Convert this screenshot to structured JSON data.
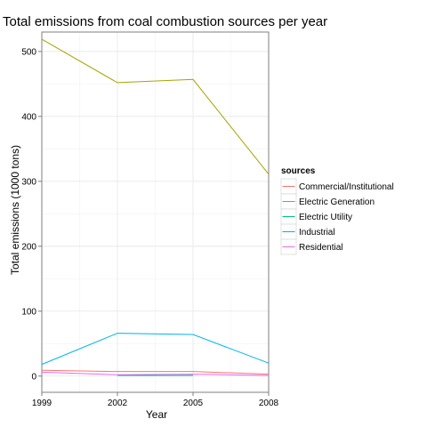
{
  "chart_data": {
    "type": "line",
    "title": "Total emissions from coal combustion sources per year",
    "xlabel": "Year",
    "ylabel": "Total emissions (1000 tons)",
    "x": [
      1999,
      2002,
      2005,
      2008
    ],
    "xlim": [
      1999,
      2008
    ],
    "ylim": [
      -25,
      530
    ],
    "x_ticks": [
      1999,
      2002,
      2005,
      2008
    ],
    "y_ticks": [
      0,
      100,
      200,
      300,
      400,
      500
    ],
    "grid": true,
    "legend": {
      "title": "sources",
      "placement": "right"
    },
    "series": [
      {
        "name": "Commercial/Institutional",
        "color": "#F8766D",
        "values": [
          9,
          7,
          7,
          3
        ]
      },
      {
        "name": "Electric Generation",
        "color": "#A3A500",
        "values": [
          519,
          452,
          457,
          311
        ]
      },
      {
        "name": "Electric Utility",
        "color": "#00BF7D",
        "values": [
          null,
          1,
          1,
          null
        ]
      },
      {
        "name": "Industrial",
        "color": "#00B0F6",
        "values": [
          18,
          66,
          64,
          20
        ]
      },
      {
        "name": "Residential",
        "color": "#E76BF3",
        "values": [
          6,
          2,
          3,
          1
        ]
      }
    ]
  }
}
